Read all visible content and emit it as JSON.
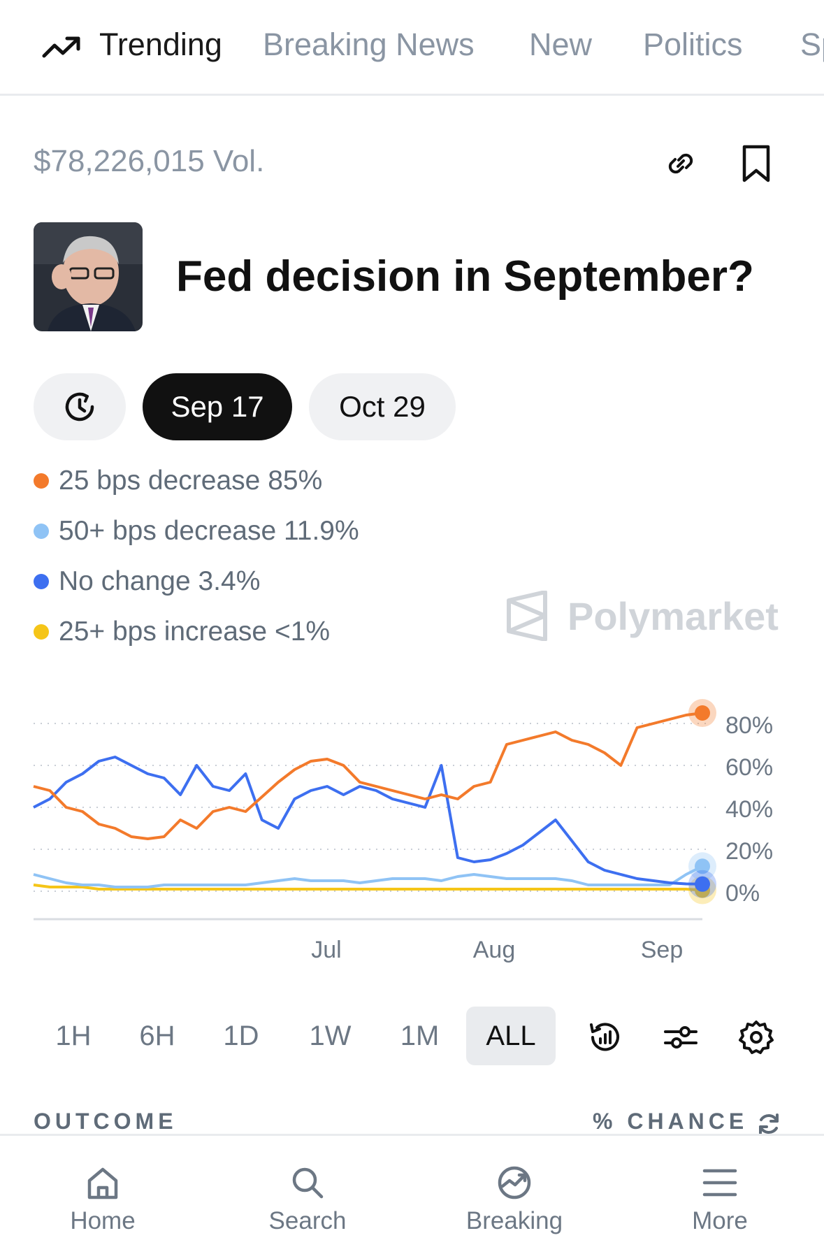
{
  "topnav": {
    "items": [
      {
        "label": "Trending",
        "active": true
      },
      {
        "label": "Breaking News"
      },
      {
        "label": "New"
      },
      {
        "label": "Politics"
      },
      {
        "label": "Sp"
      }
    ]
  },
  "market": {
    "volume": "$78,226,015 Vol.",
    "title": "Fed decision in September?"
  },
  "dates": {
    "pills": [
      "Sep 17",
      "Oct 29"
    ],
    "selected": "Sep 17"
  },
  "outcomes": [
    {
      "label": "25 bps decrease 85%",
      "color": "#f37a2b"
    },
    {
      "label": "50+ bps decrease 11.9%",
      "color": "#8fc3f5"
    },
    {
      "label": "No change 3.4%",
      "color": "#3d6ff0"
    },
    {
      "label": "25+ bps increase <1%",
      "color": "#f5c518"
    }
  ],
  "watermark": "Polymarket",
  "chart_data": {
    "type": "line",
    "x_ticks": [
      "Jul",
      "Aug",
      "Sep"
    ],
    "y_ticks": [
      "80%",
      "60%",
      "40%",
      "20%",
      "0%"
    ],
    "ylim": [
      0,
      90
    ],
    "series": [
      {
        "name": "25 bps decrease",
        "color": "#f37a2b",
        "values": [
          50,
          48,
          40,
          38,
          32,
          30,
          26,
          25,
          26,
          34,
          30,
          38,
          40,
          38,
          45,
          52,
          58,
          62,
          63,
          60,
          52,
          50,
          48,
          46,
          44,
          46,
          44,
          50,
          52,
          70,
          72,
          74,
          76,
          72,
          70,
          66,
          60,
          78,
          80,
          82,
          84,
          85
        ]
      },
      {
        "name": "No change",
        "color": "#3d6ff0",
        "values": [
          40,
          44,
          52,
          56,
          62,
          64,
          60,
          56,
          54,
          46,
          60,
          50,
          48,
          56,
          34,
          30,
          44,
          48,
          50,
          46,
          50,
          48,
          44,
          42,
          40,
          60,
          16,
          14,
          15,
          18,
          22,
          28,
          34,
          24,
          14,
          10,
          8,
          6,
          5,
          4,
          3.5,
          3.4
        ]
      },
      {
        "name": "50+ bps decrease",
        "color": "#8fc3f5",
        "values": [
          8,
          6,
          4,
          3,
          3,
          2,
          2,
          2,
          3,
          3,
          3,
          3,
          3,
          3,
          4,
          5,
          6,
          5,
          5,
          5,
          4,
          5,
          6,
          6,
          6,
          5,
          7,
          8,
          7,
          6,
          6,
          6,
          6,
          5,
          3,
          3,
          3,
          3,
          3,
          3,
          8,
          11.9
        ]
      },
      {
        "name": "25+ bps increase",
        "color": "#f5c518",
        "values": [
          3,
          2,
          2,
          2,
          1,
          1,
          1,
          1,
          1,
          1,
          1,
          1,
          1,
          1,
          1,
          1,
          1,
          1,
          1,
          1,
          1,
          1,
          1,
          1,
          1,
          1,
          1,
          1,
          1,
          1,
          1,
          1,
          1,
          1,
          1,
          1,
          1,
          1,
          1,
          1,
          1,
          0.5
        ]
      }
    ]
  },
  "ranges": [
    "1H",
    "6H",
    "1D",
    "1W",
    "1M",
    "ALL"
  ],
  "selected_range": "ALL",
  "table_head": {
    "outcome": "OUTCOME",
    "chance": "% CHANCE"
  },
  "bottomnav": {
    "items": [
      {
        "label": "Home",
        "icon": "home-icon"
      },
      {
        "label": "Search",
        "icon": "search-icon"
      },
      {
        "label": "Breaking",
        "icon": "breaking-icon"
      },
      {
        "label": "More",
        "icon": "menu-icon"
      }
    ]
  }
}
